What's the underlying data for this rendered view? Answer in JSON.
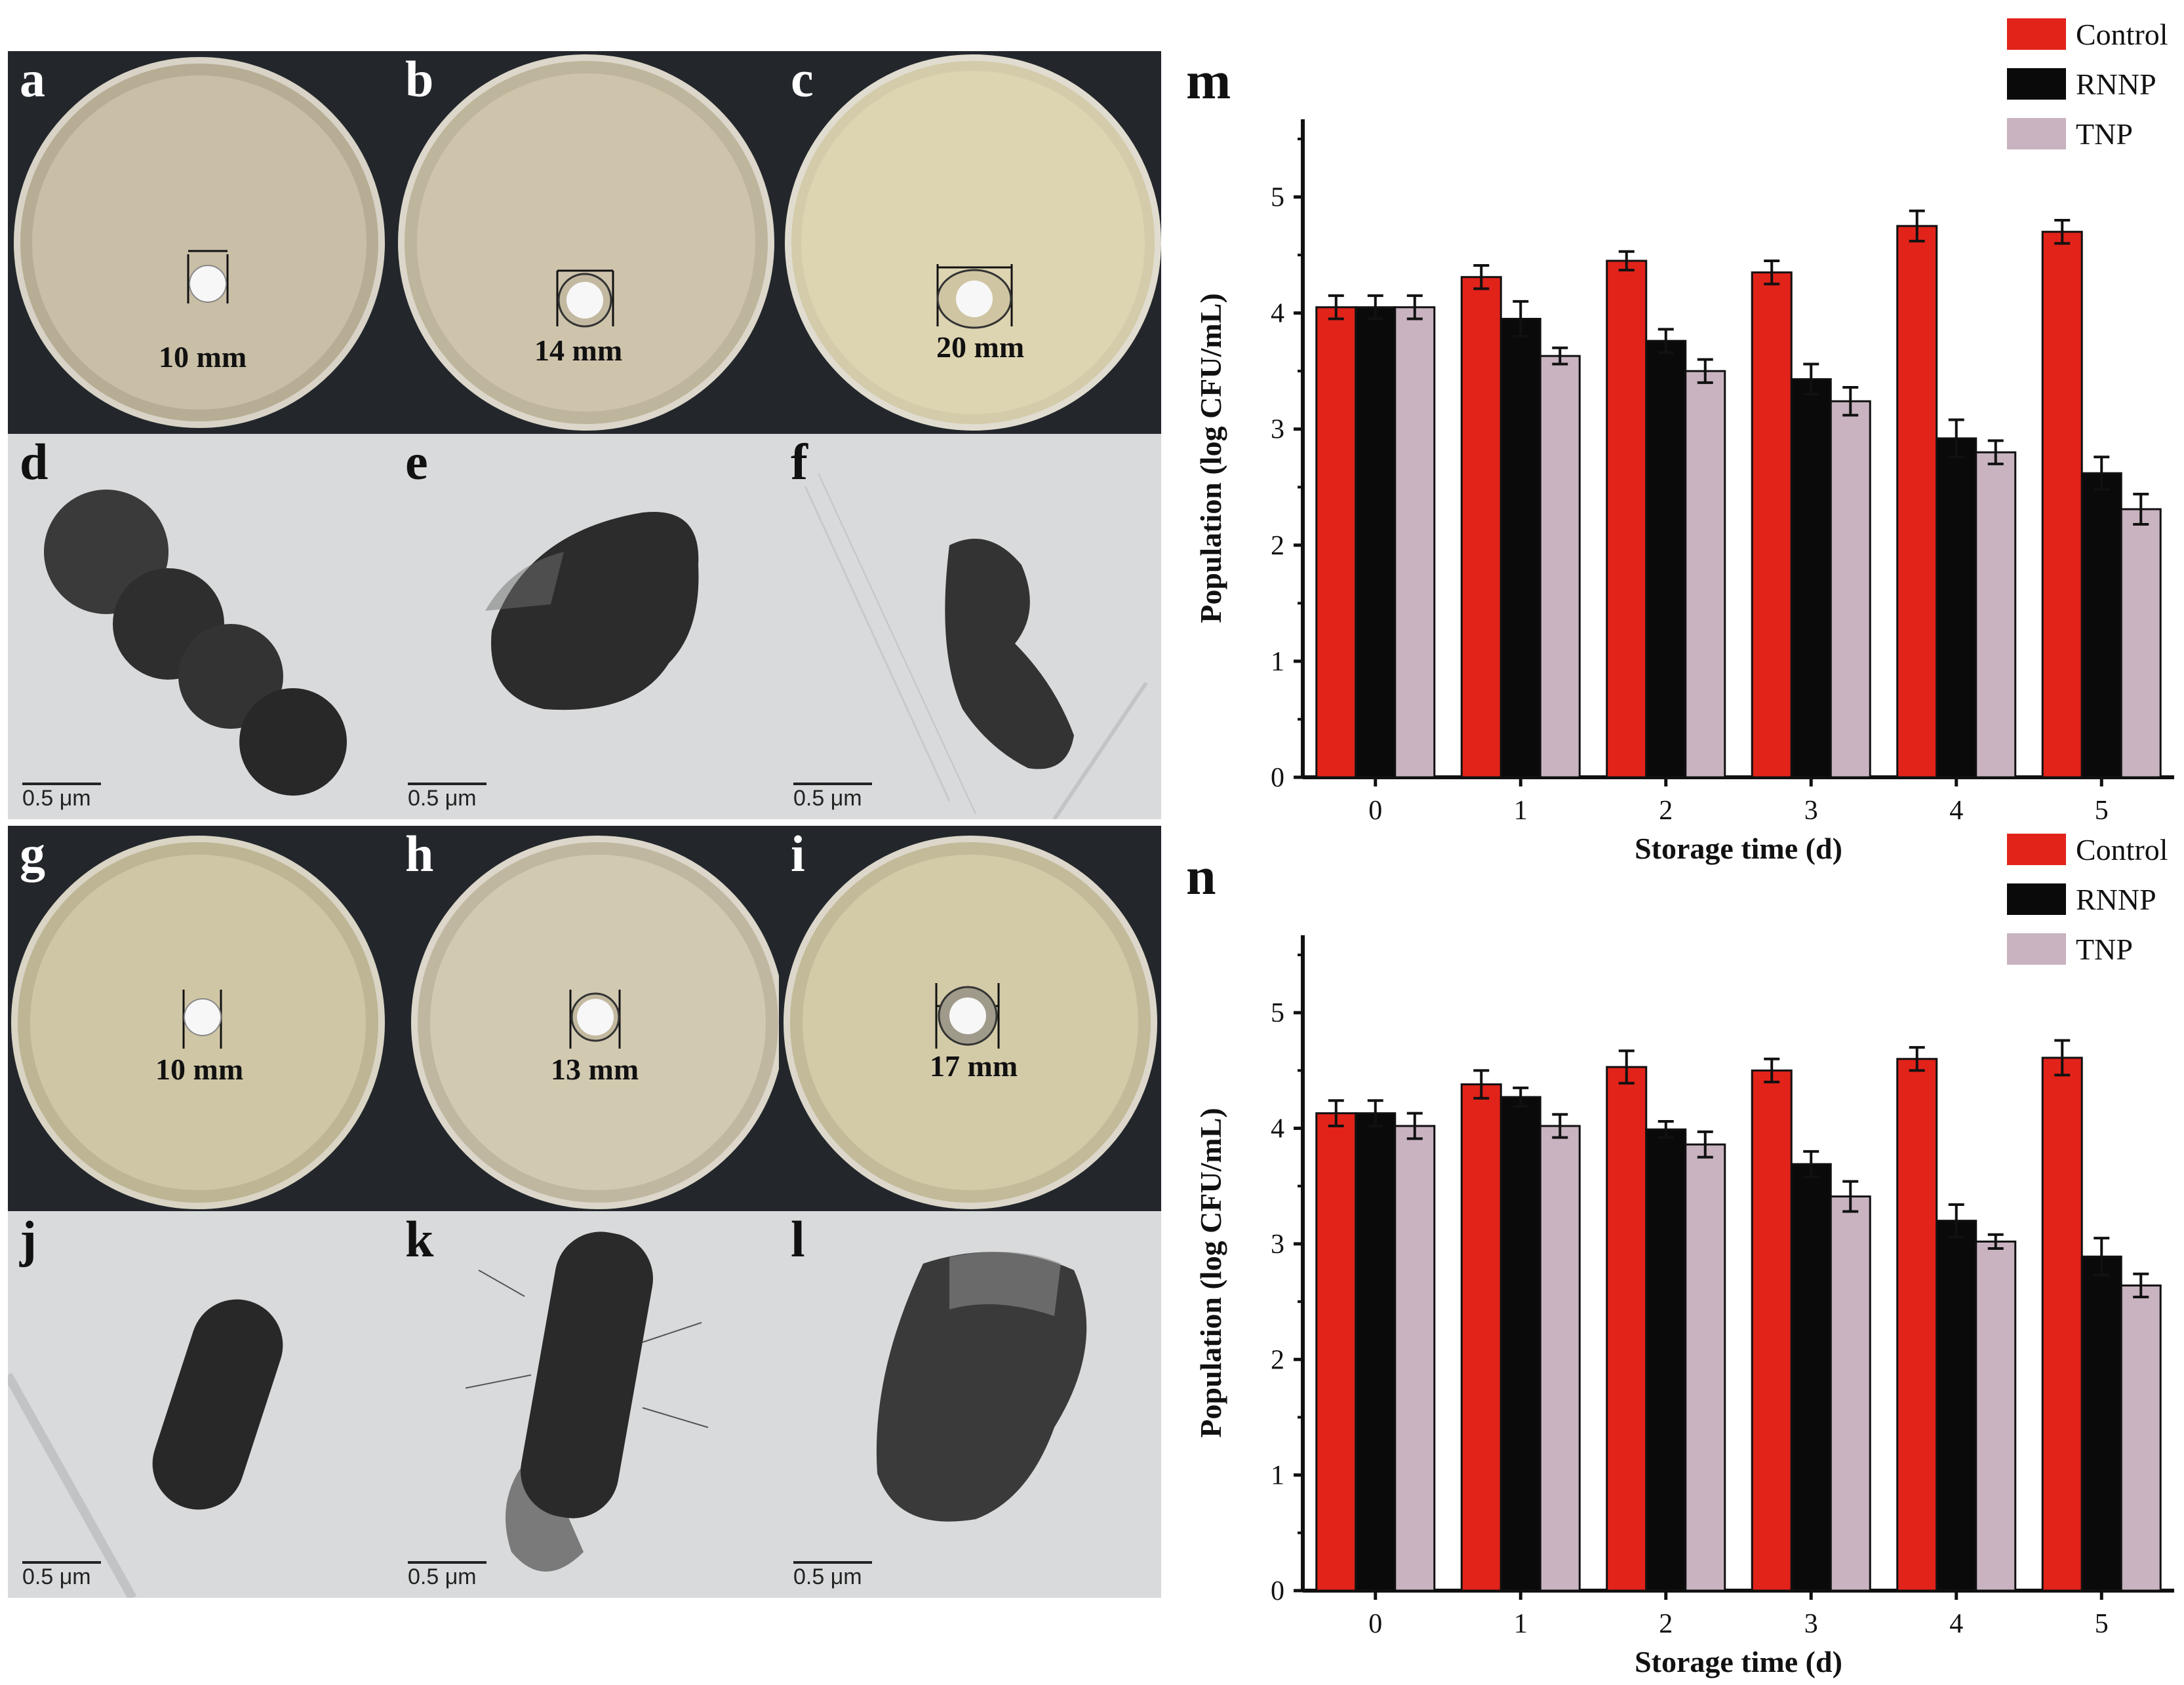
{
  "panels": {
    "a": {
      "letter": "a",
      "zone": "10 mm"
    },
    "b": {
      "letter": "b",
      "zone": "14 mm"
    },
    "c": {
      "letter": "c",
      "zone": "20 mm"
    },
    "d": {
      "letter": "d",
      "scale": "0.5 μm"
    },
    "e": {
      "letter": "e",
      "scale": "0.5 μm"
    },
    "f": {
      "letter": "f",
      "scale": "0.5 μm"
    },
    "g": {
      "letter": "g",
      "zone": "10 mm"
    },
    "h": {
      "letter": "h",
      "zone": "13 mm"
    },
    "i": {
      "letter": "i",
      "zone": "17 mm"
    },
    "j": {
      "letter": "j",
      "scale": "0.5 μm"
    },
    "k": {
      "letter": "k",
      "scale": "0.5 μm"
    },
    "l": {
      "letter": "l",
      "scale": "0.5 μm"
    }
  },
  "colors": {
    "control": "#e2231a",
    "rnnp": "#0a0a0a",
    "tnp": "#c9b3c0"
  },
  "chart_data": [
    {
      "type": "bar",
      "panel": "m",
      "categories": [
        "0",
        "1",
        "2",
        "3",
        "4",
        "5"
      ],
      "xlabel": "Storage time (d)",
      "ylabel": "Population (log CFU/mL)",
      "ylim": [
        0,
        5.5
      ],
      "yticks": [
        "0",
        "1",
        "2",
        "3",
        "4",
        "5"
      ],
      "legend_position": "top-right",
      "series": [
        {
          "name": "Control",
          "values": [
            4.05,
            4.31,
            4.45,
            4.35,
            4.75,
            4.7
          ],
          "errors": [
            0.1,
            0.1,
            0.08,
            0.1,
            0.13,
            0.1
          ]
        },
        {
          "name": "RNNP",
          "values": [
            4.05,
            3.95,
            3.76,
            3.43,
            2.92,
            2.62
          ],
          "errors": [
            0.1,
            0.15,
            0.1,
            0.13,
            0.16,
            0.14
          ]
        },
        {
          "name": "TNP",
          "values": [
            4.05,
            3.63,
            3.5,
            3.24,
            2.8,
            2.31
          ],
          "errors": [
            0.1,
            0.07,
            0.1,
            0.12,
            0.1,
            0.13
          ]
        }
      ]
    },
    {
      "type": "bar",
      "panel": "n",
      "categories": [
        "0",
        "1",
        "2",
        "3",
        "4",
        "5"
      ],
      "xlabel": "Storage time (d)",
      "ylabel": "Population (log CFU/mL)",
      "ylim": [
        0,
        5.5
      ],
      "yticks": [
        "0",
        "1",
        "2",
        "3",
        "4",
        "5"
      ],
      "legend_position": "top-right",
      "series": [
        {
          "name": "Control",
          "values": [
            4.13,
            4.38,
            4.53,
            4.5,
            4.6,
            4.61
          ],
          "errors": [
            0.11,
            0.12,
            0.14,
            0.1,
            0.1,
            0.15
          ]
        },
        {
          "name": "RNNP",
          "values": [
            4.13,
            4.27,
            3.99,
            3.69,
            3.2,
            2.89
          ],
          "errors": [
            0.11,
            0.08,
            0.07,
            0.11,
            0.14,
            0.16
          ]
        },
        {
          "name": "TNP",
          "values": [
            4.02,
            4.02,
            3.86,
            3.41,
            3.02,
            2.64
          ],
          "errors": [
            0.11,
            0.1,
            0.11,
            0.13,
            0.06,
            0.1
          ]
        }
      ]
    }
  ]
}
